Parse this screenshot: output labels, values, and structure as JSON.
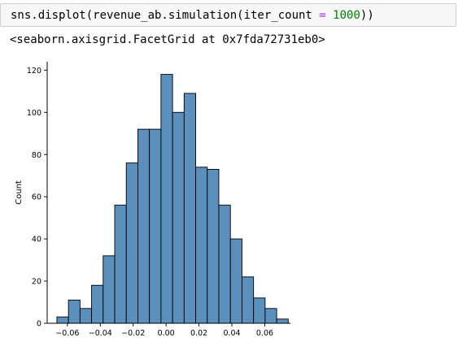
{
  "cell": {
    "code": {
      "prefix": "sns.displot(revenue_ab.simulation(iter_count ",
      "operator": "=",
      "space": " ",
      "number": "1000",
      "suffix": "))"
    },
    "output_text": "<seaborn.axisgrid.FacetGrid at 0x7fda72731eb0>"
  },
  "colors": {
    "bar_fill": "#5b8fbc",
    "bar_edge": "#000000",
    "code_operator": "#aa22ff",
    "code_number": "#008000"
  },
  "chart_data": {
    "type": "bar",
    "title": "",
    "xlabel": "",
    "ylabel": "Count",
    "xlim": [
      -0.0723,
      0.0756
    ],
    "ylim": [
      0,
      124
    ],
    "bin_edges": [
      -0.0664,
      -0.05937,
      -0.05233,
      -0.0453,
      -0.03827,
      -0.03123,
      -0.0242,
      -0.01716,
      -0.01013,
      -0.0031,
      0.00394,
      0.01097,
      0.01801,
      0.02504,
      0.03207,
      0.03911,
      0.04614,
      0.05318,
      0.06021,
      0.06724
    ],
    "counts": [
      3,
      11,
      7,
      18,
      32,
      56,
      76,
      92,
      92,
      118,
      100,
      109,
      74,
      73,
      56,
      40,
      22,
      12,
      7,
      2
    ],
    "x_ticks": [
      -0.06,
      -0.04,
      -0.02,
      0.0,
      0.02,
      0.04,
      0.06
    ],
    "x_tick_labels": [
      "−0.06",
      "−0.04",
      "−0.02",
      "0.00",
      "0.02",
      "0.04",
      "0.06"
    ],
    "y_ticks": [
      0,
      20,
      40,
      60,
      80,
      100,
      120
    ],
    "y_tick_labels": [
      "0",
      "20",
      "40",
      "60",
      "80",
      "100",
      "120"
    ],
    "grid": false,
    "legend": "none"
  }
}
